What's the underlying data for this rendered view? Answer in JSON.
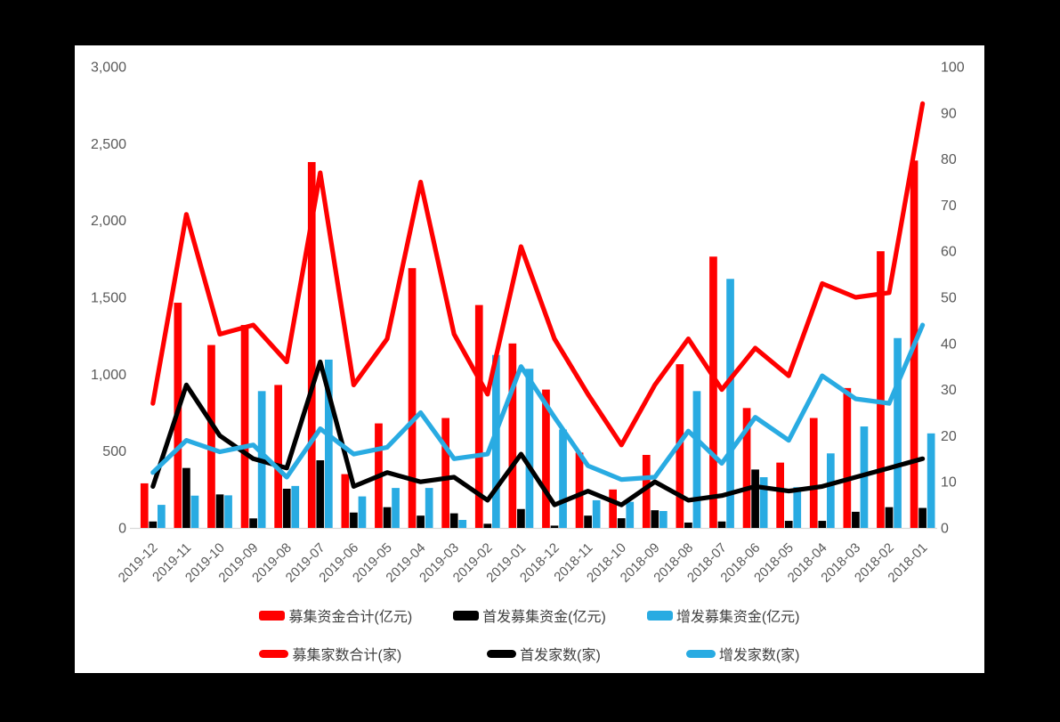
{
  "window": {
    "background": "#000000",
    "panel_background": "#FFFFFF"
  },
  "chart_data": {
    "type": "combo",
    "title": "",
    "categories": [
      "2019-12",
      "2019-11",
      "2019-10",
      "2019-09",
      "2019-08",
      "2019-07",
      "2019-06",
      "2019-05",
      "2019-04",
      "2019-03",
      "2019-02",
      "2019-01",
      "2018-12",
      "2018-11",
      "2018-10",
      "2018-09",
      "2018-08",
      "2018-07",
      "2018-06",
      "2018-05",
      "2018-04",
      "2018-03",
      "2018-02",
      "2018-01"
    ],
    "series": [
      {
        "id": "total-raised-funds-bar",
        "name": "募集资金合计(亿元)",
        "type": "bar",
        "axis": "left",
        "color": "#FF0000",
        "values": [
          290,
          1465,
          1190,
          1320,
          930,
          2380,
          350,
          680,
          1690,
          715,
          1450,
          1200,
          900,
          490,
          250,
          475,
          1065,
          1765,
          780,
          425,
          715,
          910,
          1800,
          2390
        ]
      },
      {
        "id": "ipo-raised-funds-bar",
        "name": "首发募集资金(亿元)",
        "type": "bar",
        "axis": "left",
        "color": "#000000",
        "values": [
          42,
          390,
          218,
          62,
          255,
          440,
          100,
          135,
          80,
          95,
          27,
          123,
          15,
          80,
          63,
          115,
          35,
          42,
          380,
          46,
          46,
          105,
          135,
          130
        ]
      },
      {
        "id": "secondary-raised-funds-bar",
        "name": "增发募集资金(亿元)",
        "type": "bar",
        "axis": "left",
        "color": "#29ABE2",
        "values": [
          150,
          210,
          212,
          890,
          273,
          1095,
          205,
          260,
          260,
          52,
          1125,
          1035,
          640,
          180,
          170,
          110,
          890,
          1620,
          330,
          265,
          485,
          660,
          1235,
          615
        ]
      },
      {
        "id": "total-raising-count-line",
        "name": "募集家数合计(家)",
        "type": "line",
        "axis": "right",
        "color": "#FF0000",
        "values": [
          27,
          68,
          42,
          44,
          36,
          77,
          31,
          41,
          75,
          42,
          29,
          61,
          41,
          29,
          18,
          31,
          41,
          30,
          39,
          33,
          53,
          50,
          51,
          92
        ]
      },
      {
        "id": "ipo-count-line",
        "name": "首发家数(家)",
        "type": "line",
        "axis": "right",
        "color": "#000000",
        "values": [
          9,
          31,
          20,
          15,
          13,
          36,
          9,
          12,
          10,
          11,
          6,
          16,
          5,
          8,
          5,
          10,
          6,
          7,
          9,
          8,
          9,
          11,
          13,
          15
        ]
      },
      {
        "id": "secondary-count-line",
        "name": "增发家数(家)",
        "type": "line",
        "axis": "right",
        "color": "#29ABE2",
        "values": [
          12,
          19,
          16.5,
          18,
          11,
          21.5,
          16,
          17.5,
          25,
          15,
          16,
          35,
          24,
          13.5,
          10.5,
          11,
          21,
          14,
          24,
          19,
          33,
          28,
          27,
          44
        ]
      }
    ],
    "left_axis": {
      "min": 0,
      "max": 3000,
      "tick_labels": [
        "0",
        "500",
        "1,000",
        "1,500",
        "2,000",
        "2,500",
        "3,000"
      ]
    },
    "right_axis": {
      "min": 0,
      "max": 100,
      "tick_labels": [
        "0",
        "10",
        "20",
        "30",
        "40",
        "50",
        "60",
        "70",
        "80",
        "90",
        "100"
      ]
    },
    "x_axis": {
      "label_rotation": -45,
      "label_color": "#595959"
    },
    "axis_line_color": "#D9D9D9",
    "grid": false,
    "legend_position": "bottom"
  }
}
